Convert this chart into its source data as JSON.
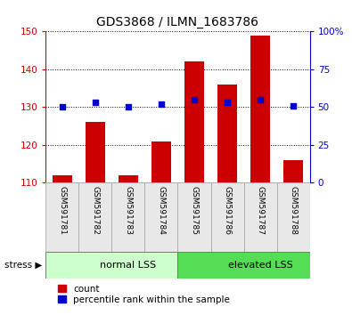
{
  "title": "GDS3868 / ILMN_1683786",
  "samples": [
    "GSM591781",
    "GSM591782",
    "GSM591783",
    "GSM591784",
    "GSM591785",
    "GSM591786",
    "GSM591787",
    "GSM591788"
  ],
  "counts": [
    112,
    126,
    112,
    121,
    142,
    136,
    149,
    116
  ],
  "percentiles": [
    50,
    53,
    50,
    52,
    55,
    53,
    55,
    51
  ],
  "ylim_left": [
    110,
    150
  ],
  "ylim_right": [
    0,
    100
  ],
  "yticks_left": [
    110,
    120,
    130,
    140,
    150
  ],
  "yticks_right": [
    0,
    25,
    50,
    75,
    100
  ],
  "bar_color": "#cc0000",
  "dot_color": "#0000cc",
  "bar_bottom": 110,
  "groups": [
    {
      "label": "normal LSS",
      "start": 0,
      "end": 4,
      "color": "#ccffcc"
    },
    {
      "label": "elevated LSS",
      "start": 4,
      "end": 8,
      "color": "#55dd55"
    }
  ],
  "stress_label": "stress",
  "legend_count_label": "count",
  "legend_pct_label": "percentile rank within the sample",
  "sample_bg_color": "#e8e8e8",
  "title_color": "#000000",
  "left_axis_color": "#cc0000",
  "right_axis_color": "#0000cc",
  "grid_color": "#000000"
}
